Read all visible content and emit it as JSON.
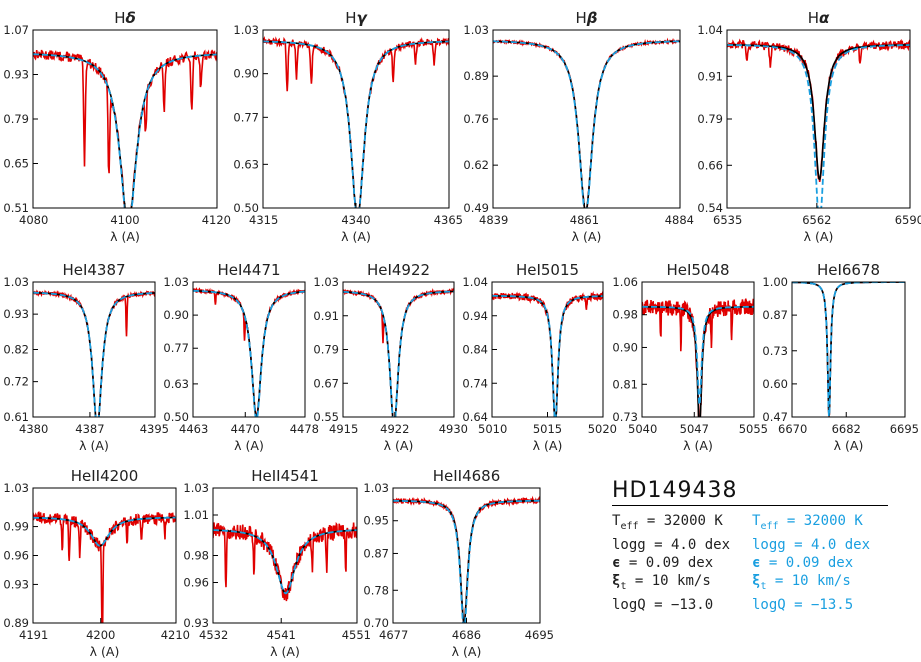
{
  "colors": {
    "observed": "#e00000",
    "model1": "#000000",
    "model2": "#1a9fe0"
  },
  "xlabel": "λ (A)",
  "chart_data": [
    {
      "type": "line",
      "title_main": "H",
      "title_greek": "δ",
      "xlim": [
        4080,
        4120
      ],
      "ylim": [
        0.51,
        1.07
      ],
      "xticks": [
        4080,
        4100,
        4120
      ],
      "yticks": [
        0.51,
        0.65,
        0.79,
        0.93,
        1.07
      ],
      "ytick_labels": [
        "0.51",
        "0.65",
        "0.79",
        "0.93",
        "1.07"
      ],
      "center": 4100.7,
      "depth": 0.54,
      "width": 2.2,
      "blue_depth": 0.55,
      "noise": 0.015,
      "dips": [
        [
          4091.2,
          0.32
        ],
        [
          4096.5,
          0.28
        ],
        [
          4104.5,
          0.12
        ],
        [
          4108.5,
          0.15
        ],
        [
          4114.5,
          0.18
        ],
        [
          4116.5,
          0.1
        ]
      ]
    },
    {
      "type": "line",
      "title_main": "H",
      "title_greek": "γ",
      "xlim": [
        4315,
        4365
      ],
      "ylim": [
        0.5,
        1.03
      ],
      "xticks": [
        4315,
        4340,
        4365
      ],
      "yticks": [
        0.5,
        0.63,
        0.77,
        0.9,
        1.03
      ],
      "ytick_labels": [
        "0.50",
        "0.63",
        "0.77",
        "0.90",
        "1.03"
      ],
      "center": 4340.4,
      "depth": 0.53,
      "width": 2.2,
      "blue_depth": 0.53,
      "noise": 0.01,
      "dips": [
        [
          4321.5,
          0.15
        ],
        [
          4324,
          0.1
        ],
        [
          4328,
          0.12
        ],
        [
          4350,
          0.1
        ],
        [
          4356,
          0.06
        ],
        [
          4361,
          0.06
        ]
      ]
    },
    {
      "type": "line",
      "title_main": "H",
      "title_greek": "β",
      "xlim": [
        4839,
        4884
      ],
      "ylim": [
        0.49,
        1.03
      ],
      "xticks": [
        4839,
        4861,
        4884
      ],
      "yticks": [
        0.49,
        0.62,
        0.76,
        0.89,
        1.03
      ],
      "ytick_labels": [
        "0.49",
        "0.62",
        "0.76",
        "0.89",
        "1.03"
      ],
      "center": 4861.3,
      "depth": 0.52,
      "width": 2.0,
      "blue_depth": 0.53,
      "noise": 0.004,
      "dips": []
    },
    {
      "type": "line",
      "title_main": "H",
      "title_greek": "α",
      "xlim": [
        6535,
        6590
      ],
      "ylim": [
        0.54,
        1.04
      ],
      "xticks": [
        6535,
        6562,
        6590
      ],
      "yticks": [
        0.54,
        0.66,
        0.79,
        0.91,
        1.04
      ],
      "ytick_labels": [
        "0.54",
        "0.66",
        "0.79",
        "0.91",
        "1.04"
      ],
      "center": 6562.8,
      "depth": 0.38,
      "width": 1.8,
      "blue_depth": 0.5,
      "noise": 0.012,
      "dips": [
        [
          6541,
          0.04
        ],
        [
          6548,
          0.05
        ],
        [
          6575,
          0.04
        ]
      ]
    },
    {
      "type": "line",
      "title_main": "HeI4387",
      "title_greek": "",
      "xlim": [
        4380,
        4395
      ],
      "ylim": [
        0.61,
        1.03
      ],
      "xticks": [
        4380,
        4387,
        4395
      ],
      "yticks": [
        0.61,
        0.72,
        0.82,
        0.93,
        1.03
      ],
      "ytick_labels": [
        "0.61",
        "0.72",
        "0.82",
        "0.93",
        "1.03"
      ],
      "center": 4387.9,
      "depth": 0.42,
      "width": 0.7,
      "blue_depth": 0.42,
      "noise": 0.005,
      "dips": [
        [
          4391.5,
          0.12
        ]
      ]
    },
    {
      "type": "line",
      "title_main": "HeI4471",
      "title_greek": "",
      "xlim": [
        4463,
        4478
      ],
      "ylim": [
        0.5,
        1.03
      ],
      "xticks": [
        4463,
        4470,
        4478
      ],
      "yticks": [
        0.5,
        0.63,
        0.77,
        0.9,
        1.03
      ],
      "ytick_labels": [
        "0.50",
        "0.63",
        "0.77",
        "0.90",
        "1.03"
      ],
      "center": 4471.5,
      "depth": 0.5,
      "width": 0.8,
      "blue_depth": 0.51,
      "noise": 0.007,
      "dips": [
        [
          4466,
          0.05
        ],
        [
          4469.9,
          0.1
        ]
      ]
    },
    {
      "type": "line",
      "title_main": "HeI4922",
      "title_greek": "",
      "xlim": [
        4915,
        4930
      ],
      "ylim": [
        0.55,
        1.03
      ],
      "xticks": [
        4915,
        4922,
        4930
      ],
      "yticks": [
        0.55,
        0.67,
        0.79,
        0.91,
        1.03
      ],
      "ytick_labels": [
        "0.55",
        "0.67",
        "0.79",
        "0.91",
        "1.03"
      ],
      "center": 4921.9,
      "depth": 0.48,
      "width": 0.7,
      "blue_depth": 0.48,
      "noise": 0.006,
      "dips": [
        [
          4920.4,
          0.1
        ]
      ]
    },
    {
      "type": "line",
      "title_main": "HeI5015",
      "title_greek": "",
      "xlim": [
        5010,
        5020
      ],
      "ylim": [
        0.64,
        1.04
      ],
      "xticks": [
        5010,
        5015,
        5020
      ],
      "yticks": [
        0.64,
        0.74,
        0.84,
        0.94,
        1.04
      ],
      "ytick_labels": [
        "0.64",
        "0.74",
        "0.84",
        "0.94",
        "1.04"
      ],
      "center": 5015.7,
      "depth": 0.38,
      "width": 0.3,
      "blue_depth": 0.37,
      "noise": 0.01,
      "dips": [
        [
          5018.5,
          0.04
        ]
      ]
    },
    {
      "type": "line",
      "title_main": "HeI5048",
      "title_greek": "",
      "xlim": [
        5040,
        5055
      ],
      "ylim": [
        0.73,
        1.06
      ],
      "xticks": [
        5040,
        5047,
        5055
      ],
      "yticks": [
        0.73,
        0.81,
        0.9,
        0.98,
        1.06
      ],
      "ytick_labels": [
        "0.73",
        "0.81",
        "0.90",
        "0.98",
        "1.06"
      ],
      "center": 5047.7,
      "depth": 0.3,
      "width": 0.35,
      "blue_depth": 0.24,
      "noise": 0.02,
      "dips": [
        [
          5042.5,
          0.07
        ],
        [
          5045.2,
          0.09
        ],
        [
          5049.3,
          0.08
        ],
        [
          5052,
          0.06
        ]
      ]
    },
    {
      "type": "line",
      "title_main": "HeI6678",
      "title_greek": "",
      "xlim": [
        6670,
        6695
      ],
      "ylim": [
        0.47,
        1.0
      ],
      "xticks": [
        6670,
        6682,
        6695
      ],
      "yticks": [
        0.47,
        0.6,
        0.73,
        0.87,
        1.0
      ],
      "ytick_labels": [
        "0.47",
        "0.60",
        "0.73",
        "0.87",
        "1.00"
      ],
      "center": 6678.2,
      "depth": 0.53,
      "width": 0.4,
      "blue_depth": 0.53,
      "noise": 0.0,
      "dips": []
    },
    {
      "type": "line",
      "title_main": "HeII4200",
      "title_greek": "",
      "xlim": [
        4191,
        4210
      ],
      "ylim": [
        0.89,
        1.03
      ],
      "xticks": [
        4191,
        4200,
        4210
      ],
      "yticks": [
        0.89,
        0.93,
        0.96,
        0.99,
        1.03
      ],
      "ytick_labels": [
        "0.89",
        "0.93",
        "0.96",
        "0.99",
        "1.03"
      ],
      "center": 4199.9,
      "depth": 0.03,
      "width": 1.5,
      "blue_depth": 0.03,
      "noise": 0.006,
      "dips": [
        [
          4194.9,
          0.03
        ],
        [
          4195.8,
          0.045
        ],
        [
          4197.2,
          0.03
        ],
        [
          4200.2,
          0.1
        ],
        [
          4203.5,
          0.02
        ],
        [
          4205.4,
          0.025
        ],
        [
          4208.5,
          0.02
        ]
      ]
    },
    {
      "type": "line",
      "title_main": "HeII4541",
      "title_greek": "",
      "xlim": [
        4532,
        4551
      ],
      "ylim": [
        0.93,
        1.03
      ],
      "xticks": [
        4532,
        4541,
        4551
      ],
      "yticks": [
        0.93,
        0.96,
        0.98,
        1.01,
        1.03
      ],
      "ytick_labels": [
        "0.93",
        "0.96",
        "0.98",
        "1.01",
        "1.03"
      ],
      "center": 4541.6,
      "depth": 0.048,
      "width": 1.5,
      "blue_depth": 0.048,
      "noise": 0.006,
      "dips": [
        [
          4533.7,
          0.045
        ],
        [
          4537.4,
          0.025
        ],
        [
          4545.1,
          0.02
        ],
        [
          4547,
          0.025
        ],
        [
          4549.5,
          0.03
        ]
      ]
    },
    {
      "type": "line",
      "title_main": "HeII4686",
      "title_greek": "",
      "xlim": [
        4677,
        4695
      ],
      "ylim": [
        0.7,
        1.03
      ],
      "xticks": [
        4677,
        4686,
        4695
      ],
      "yticks": [
        0.7,
        0.78,
        0.87,
        0.95,
        1.03
      ],
      "ytick_labels": [
        "0.70",
        "0.78",
        "0.87",
        "0.95",
        "1.03"
      ],
      "center": 4685.7,
      "depth": 0.3,
      "width": 0.55,
      "blue_depth": 0.32,
      "noise": 0.006,
      "dips": []
    }
  ],
  "legend": {
    "star": "HD149438",
    "black": {
      "teff_label": "T",
      "teff_sub": "eff",
      "teff_value": " = 32000 K",
      "logg": "logg = 4.0 dex",
      "eps_sym": "ϵ",
      "eps_value": " = 0.09 dex",
      "xi_sym": "ξ",
      "xi_sub": "t",
      "xi_value": " = 10 km/s",
      "logq": "logQ = −13.0"
    },
    "blue": {
      "teff_label": "T",
      "teff_sub": "eff",
      "teff_value": " = 32000 K",
      "logg": "logg = 4.0 dex",
      "eps_sym": "ϵ",
      "eps_value": " = 0.09 dex",
      "xi_sym": "ξ",
      "xi_sub": "t",
      "xi_value": " = 10 km/s",
      "logq": "logQ = −13.5"
    }
  }
}
